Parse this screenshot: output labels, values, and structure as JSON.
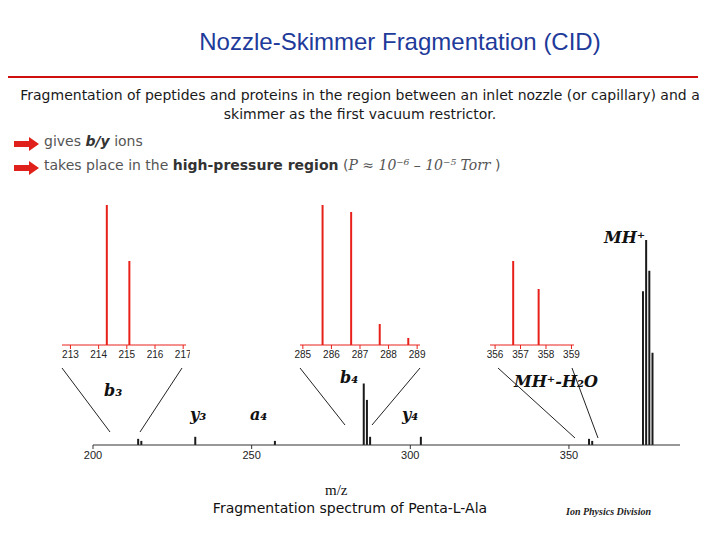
{
  "slide": {
    "title": "Nozzle-Skimmer Fragmentation (CID)",
    "text": "Fragmentation of peptides and proteins in the region between an inlet nozzle (or capillary) and a skimmer as the first vacuum restrictor.",
    "bullets": [
      [
        {
          "text": "gives "
        },
        {
          "text": "b/y",
          "style": "bold-italic"
        },
        {
          "text": " ions"
        }
      ],
      [
        {
          "text": "takes place in the "
        },
        {
          "text": "high-pressure region",
          "style": "bold"
        },
        {
          "text": " ("
        },
        {
          "text": "P ≈ 10⁻⁶ – 10⁻⁵ Torr",
          "style": "italic-serif"
        },
        {
          "text": " )"
        }
      ]
    ],
    "footer": "Ion Physics Division"
  },
  "chart_data": [
    {
      "type": "bar",
      "caption": "Fragmentation spectrum of Penta-L-Ala",
      "xlabel": "m/z",
      "x": [
        214.1,
        215.1,
        232.1,
        257.2,
        285.2,
        286.2,
        287.2,
        303.2,
        356.2,
        357.2,
        373.2,
        374.2,
        375.2,
        376.2
      ],
      "values": [
        3,
        2,
        4,
        2,
        30,
        22,
        4,
        4,
        3,
        2,
        75,
        100,
        85,
        45
      ],
      "color": "#1a1a1a",
      "xlim": [
        200,
        385
      ],
      "xticks": [
        200,
        250,
        300,
        350
      ],
      "ylim": [
        0,
        100
      ],
      "tick_labels": "x",
      "annotations": [
        "b₃",
        "y₃",
        "a₄",
        "b₄",
        "y₄",
        "MH⁺-H₂O",
        "MH⁺"
      ]
    },
    {
      "type": "bar",
      "x": [
        214.3,
        215.1
      ],
      "values": [
        100,
        60
      ],
      "color": "#e8201a",
      "xlim": [
        212.7,
        217.1
      ],
      "xticks": [
        213,
        214,
        215,
        216,
        217
      ],
      "ylim": [
        0,
        100
      ],
      "tick_labels": "x"
    },
    {
      "type": "bar",
      "x": [
        285.7,
        286.7,
        287.7,
        288.7
      ],
      "values": [
        100,
        95,
        15,
        5
      ],
      "color": "#e8201a",
      "xlim": [
        284.9,
        289.1
      ],
      "xticks": [
        285,
        286,
        287,
        288,
        289
      ],
      "ylim": [
        0,
        100
      ],
      "tick_labels": "x"
    },
    {
      "type": "bar",
      "x": [
        356.7,
        357.7
      ],
      "values": [
        60,
        40
      ],
      "color": "#e8201a",
      "xlim": [
        355.8,
        359.1
      ],
      "xticks": [
        356,
        357,
        358,
        359
      ],
      "ylim": [
        0,
        100
      ],
      "tick_labels": "x"
    }
  ]
}
